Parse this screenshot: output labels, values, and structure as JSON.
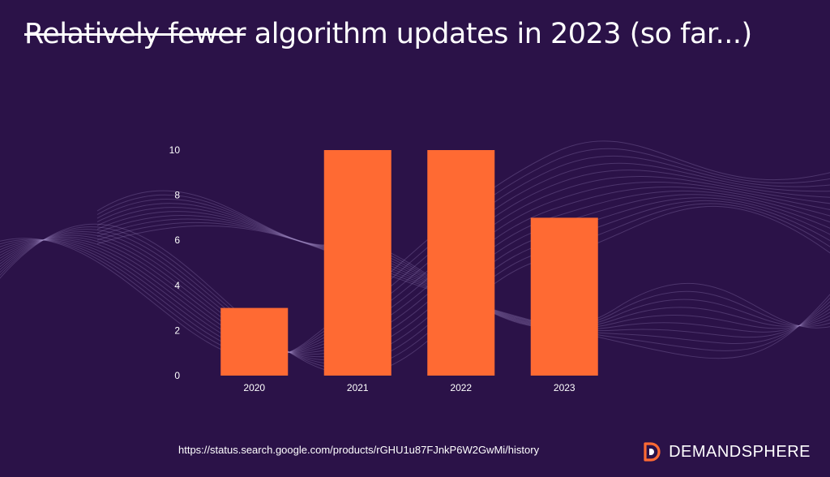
{
  "title": {
    "struck_text": "Relatively fewer",
    "rest_text": " algorithm updates in 2023 (so far...)"
  },
  "source_url": "https://status.search.google.com/products/rGHU1u87FJnkP6W2GwMi/history",
  "brand": {
    "name": "DEMANDSPHERE",
    "icon": "demandsphere-d-logo-icon"
  },
  "colors": {
    "background": "#2b1248",
    "bar": "#ff6a33",
    "text": "#ffffff",
    "wave_lines": "#a78fc8"
  },
  "chart_data": {
    "type": "bar",
    "categories": [
      "2020",
      "2021",
      "2022",
      "2023"
    ],
    "values": [
      3,
      10,
      10,
      7
    ],
    "ylim": [
      0,
      10
    ],
    "yticks": [
      0,
      2,
      4,
      6,
      8,
      10
    ],
    "grid": false,
    "legend": "none"
  }
}
